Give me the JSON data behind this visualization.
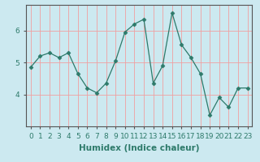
{
  "x": [
    0,
    1,
    2,
    3,
    4,
    5,
    6,
    7,
    8,
    9,
    10,
    11,
    12,
    13,
    14,
    15,
    16,
    17,
    18,
    19,
    20,
    21,
    22,
    23
  ],
  "y": [
    4.85,
    5.2,
    5.3,
    5.15,
    5.3,
    4.65,
    4.2,
    4.05,
    4.35,
    5.05,
    5.95,
    6.2,
    6.35,
    4.35,
    4.9,
    6.55,
    5.55,
    5.15,
    4.65,
    3.35,
    3.9,
    3.6,
    4.2,
    4.2
  ],
  "line_color": "#2d7a6a",
  "marker": "D",
  "marker_size": 2.5,
  "bg_color": "#cce9f0",
  "grid_color": "#f0a0a0",
  "xlabel": "Humidex (Indice chaleur)",
  "ylim": [
    3.0,
    6.8
  ],
  "xlim": [
    -0.5,
    23.5
  ],
  "yticks": [
    4,
    5,
    6
  ],
  "xticks": [
    0,
    1,
    2,
    3,
    4,
    5,
    6,
    7,
    8,
    9,
    10,
    11,
    12,
    13,
    14,
    15,
    16,
    17,
    18,
    19,
    20,
    21,
    22,
    23
  ],
  "xlabel_fontsize": 7.5,
  "tick_fontsize": 6.5,
  "axis_color": "#555555"
}
